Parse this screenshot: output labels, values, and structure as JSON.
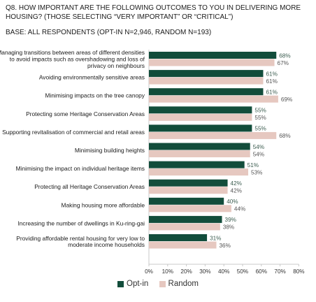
{
  "header": {
    "question": "Q8. HOW IMPORTANT ARE THE FOLLOWING OUTCOMES TO YOU IN DELIVERING MORE HOUSING? (THOSE SELECTING “VERY IMPORTANT” OR “CRITICAL”)",
    "base": "BASE: ALL RESPONDENTS (OPT-IN N=2,946, RANDOM N=193)"
  },
  "colors": {
    "opt_in": "#124d3b",
    "random": "#e6c8c0",
    "opt_label": "#3c5d50",
    "random_label": "#555555",
    "axis": "#c8c8c8"
  },
  "chart_data": {
    "type": "bar",
    "orientation": "horizontal",
    "categories": [
      [
        "Managing transitions between areas of different densities",
        "to avoid impacts such as overshadowing and loss of",
        "privacy on neighbours"
      ],
      [
        "Avoiding environmentally sensitive areas"
      ],
      [
        "Minimising impacts on the tree canopy"
      ],
      [
        "Protecting some Heritage Conservation Areas"
      ],
      [
        "Supporting revitalisation of commercial and retail areas"
      ],
      [
        "Minimising building heights"
      ],
      [
        "Minimising the impact on individual heritage items"
      ],
      [
        "Protecting all Heritage Conservation Areas"
      ],
      [
        "Making housing more affordable"
      ],
      [
        "Increasing the number of dwellings in Ku-ring-gai"
      ],
      [
        "Providing affordable rental housing for very low to",
        "moderate income households"
      ]
    ],
    "series": [
      {
        "name": "Opt-in",
        "values": [
          68,
          61,
          61,
          55,
          55,
          54,
          51,
          42,
          40,
          39,
          31
        ]
      },
      {
        "name": "Random",
        "values": [
          67,
          61,
          69,
          55,
          68,
          54,
          53,
          42,
          44,
          38,
          36
        ]
      }
    ],
    "value_suffix": "%",
    "xlim": [
      0,
      80
    ],
    "xticks": [
      "0%",
      "10%",
      "20%",
      "30%",
      "40%",
      "50%",
      "60%",
      "70%",
      "80%"
    ],
    "grid": false,
    "legend_position": "bottom"
  }
}
